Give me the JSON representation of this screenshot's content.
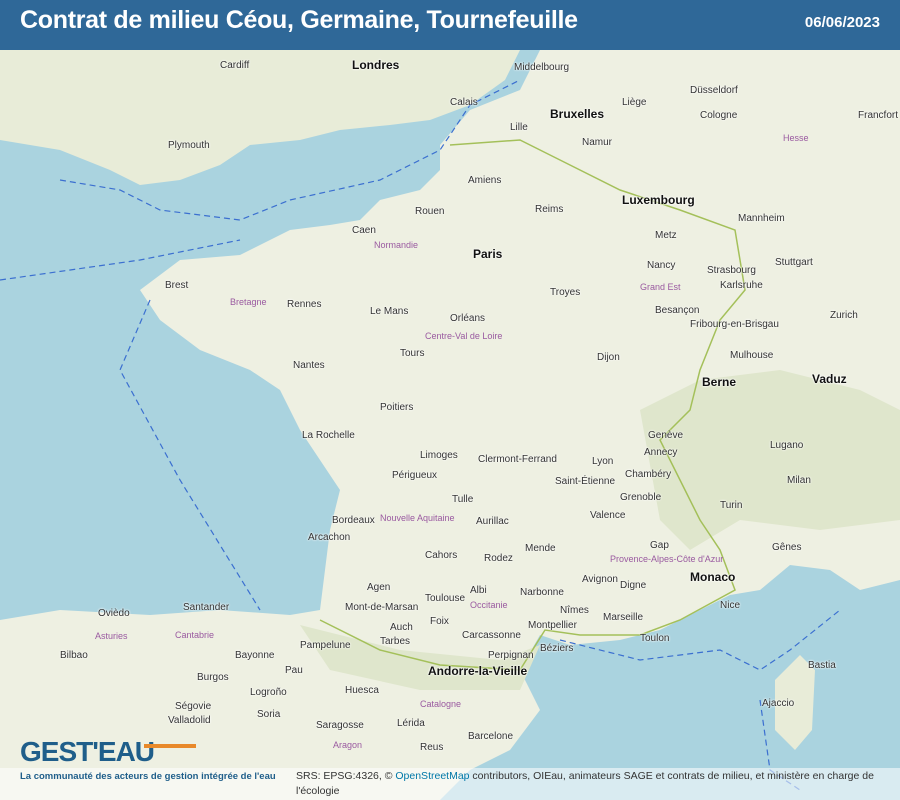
{
  "header": {
    "title": "Contrat de milieu  Céou, Germaine, Tournefeuille",
    "date": "06/06/2023"
  },
  "logo": {
    "name": "GEST'EAU",
    "tagline": "La communauté des acteurs de gestion intégrée de l'eau"
  },
  "attribution": {
    "prefix": "SRS: EPSG:4326, © ",
    "link": "OpenStreetMap",
    "suffix": " contributors, OIEau, animateurs SAGE et contrats de milieu, et ministère en charge de l'écologie"
  },
  "colors": {
    "header": "#2f6898",
    "sea": "#aad3df",
    "land": "#f2efe9",
    "border": "#3b6fd0",
    "logo_accent": "#e8892a"
  },
  "map": {
    "cities": [
      "Londres",
      "Bruxelles",
      "Luxembourg",
      "Paris",
      "Berne",
      "Monaco",
      "Andorre-la-Vieille",
      "Vaduz",
      "Cardiff",
      "Plymouth",
      "Calais",
      "Lille",
      "Amiens",
      "Rouen",
      "Caen",
      "Brest",
      "Rennes",
      "Nantes",
      "Le Mans",
      "Tours",
      "Orléans",
      "Reims",
      "Troyes",
      "Metz",
      "Nancy",
      "Strasbourg",
      "Dijon",
      "Besançon",
      "Poitiers",
      "Limoges",
      "La Rochelle",
      "Bordeaux",
      "Clermont-Ferrand",
      "Lyon",
      "Grenoble",
      "Saint-Étienne",
      "Toulouse",
      "Montpellier",
      "Marseille",
      "Nice",
      "Perpignan",
      "Bayonne",
      "Pau",
      "Tulle",
      "Aurillac",
      "Cahors",
      "Périgueux",
      "Agen",
      "Rodez",
      "Turin",
      "Milan",
      "Gênes",
      "Genève",
      "Zurich",
      "Stuttgart",
      "Francfort",
      "Cologne",
      "Düsseldorf",
      "Bilbao",
      "Saragosse",
      "Barcelone",
      "Valladolid",
      "Santander",
      "Lérida",
      "Huesca",
      "Pampelune",
      "Ajaccio",
      "Bastia",
      "Avignon",
      "Nîmes",
      "Chambéry",
      "Annecy",
      "Mulhouse",
      "Fribourg-en-Brisgau",
      "Karlsruhe",
      "Mannheim",
      "Liège",
      "Namur",
      "Middelbourg",
      "Lugano",
      "Ovièdo",
      "Burgos",
      "Logroño",
      "Soria",
      "Ségovie",
      "Reus",
      "Carcassonne",
      "Narbonne",
      "Béziers",
      "Mende",
      "Valence",
      "Gap",
      "Digne",
      "Toulon",
      "Arcachon",
      "Mont-de-Marsan",
      "Auch",
      "Tarbes",
      "Foix",
      "Albi"
    ],
    "regions": [
      "Normandie",
      "Bretagne",
      "Centre-Val de Loire",
      "Grand Est",
      "Nouvelle Aquitaine",
      "Occitanie",
      "Provence-Alpes-Côte d'Azur",
      "Hesse",
      "Catalogne",
      "Aragon",
      "Cantabrie",
      "Asturies"
    ]
  }
}
